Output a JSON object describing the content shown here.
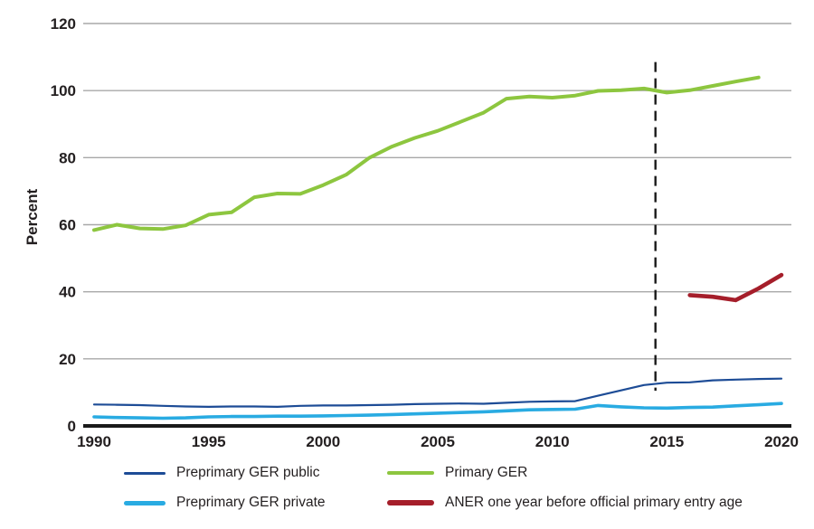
{
  "chart_data": {
    "type": "line",
    "title": "",
    "xlabel": "",
    "ylabel": "Percent",
    "xlim": [
      1990,
      2020
    ],
    "ylim": [
      0,
      120
    ],
    "yticks": [
      0,
      20,
      40,
      60,
      80,
      100,
      120
    ],
    "xticks": [
      1990,
      1995,
      2000,
      2005,
      2010,
      2015,
      2020
    ],
    "grid": true,
    "legend_position": "bottom",
    "colors": {
      "grid": "#a8a8a8",
      "axis": "#1a1a1a",
      "text": "#231f20"
    },
    "reference_line": {
      "x": 2014.5,
      "style": "dashed",
      "color": "#1a1a1a",
      "y_top": 108.5,
      "y_bottom": 10.5
    },
    "series": [
      {
        "name": "Preprimary GER public",
        "slug": "preprimary-ger-public",
        "color": "#1d4c96",
        "width": 2.2,
        "x_start": 1990,
        "values": [
          6.4,
          6.3,
          6.2,
          6.0,
          5.8,
          5.7,
          5.8,
          5.8,
          5.7,
          6.0,
          6.1,
          6.1,
          6.2,
          6.3,
          6.5,
          6.6,
          6.7,
          6.6,
          6.9,
          7.2,
          7.3,
          7.4,
          9.0,
          10.6,
          12.2,
          12.9,
          13.0,
          13.6,
          13.8,
          14.0,
          14.1
        ]
      },
      {
        "name": "Preprimary GER private",
        "slug": "preprimary-ger-private",
        "color": "#29abe2",
        "width": 3.6,
        "x_start": 1990,
        "values": [
          2.7,
          2.5,
          2.4,
          2.3,
          2.4,
          2.7,
          2.8,
          2.8,
          2.9,
          2.9,
          3.0,
          3.1,
          3.2,
          3.4,
          3.6,
          3.8,
          4.0,
          4.2,
          4.5,
          4.8,
          4.9,
          5.0,
          6.1,
          5.7,
          5.4,
          5.3,
          5.5,
          5.6,
          6.0,
          6.3,
          6.7
        ]
      },
      {
        "name": "Primary GER",
        "slug": "primary-ger",
        "color": "#8dc63f",
        "width": 4,
        "x_start": 1990,
        "values": [
          58.4,
          60.0,
          58.9,
          58.7,
          59.8,
          63.0,
          63.7,
          68.2,
          69.3,
          69.2,
          71.8,
          74.9,
          79.9,
          83.3,
          85.9,
          88.0,
          90.7,
          93.4,
          97.6,
          98.2,
          97.9,
          98.5,
          99.9,
          100.1,
          100.6,
          99.4,
          100.1,
          101.4,
          102.7,
          103.9
        ]
      },
      {
        "name": "ANER one year before official primary entry age",
        "slug": "aner-one-year-before-official-primary-entry-age",
        "color": "#a51e2a",
        "width": 4.6,
        "x_start": 2016,
        "values": [
          39.0,
          38.5,
          37.5,
          41.0,
          45.0
        ]
      }
    ]
  }
}
